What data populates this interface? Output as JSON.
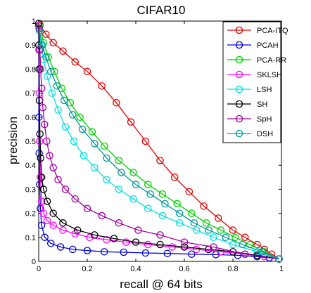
{
  "chart_data": {
    "type": "line",
    "title": "CIFAR10",
    "xlabel": "recall @ 64 bits",
    "ylabel": "precision",
    "xlim": [
      0,
      1
    ],
    "ylim": [
      0,
      1
    ],
    "xticks": [
      0,
      0.2,
      0.4,
      0.6,
      0.8,
      1
    ],
    "xtick_labels": [
      "0",
      "0.2",
      "0.4",
      "0.6",
      "0.8",
      "1"
    ],
    "yticks": [
      0,
      0.1,
      0.2,
      0.3,
      0.4,
      0.5,
      0.6,
      0.7,
      0.8,
      0.9,
      1
    ],
    "ytick_labels": [
      "0",
      "0.1",
      "0.2",
      "0.3",
      "0.4",
      "0.5",
      "0.6",
      "0.7",
      "0.8",
      "0.9",
      "1"
    ],
    "grid": false,
    "legend_position": "top-right",
    "marker": "circle",
    "series": [
      {
        "name": "PCA-ITQ",
        "color": "#e00000",
        "x": [
          0.005,
          0.03,
          0.06,
          0.1,
          0.15,
          0.2,
          0.26,
          0.32,
          0.38,
          0.44,
          0.5,
          0.56,
          0.62,
          0.68,
          0.74,
          0.8,
          0.85,
          0.9,
          0.93,
          0.96,
          0.99
        ],
        "y": [
          0.985,
          0.945,
          0.91,
          0.875,
          0.83,
          0.79,
          0.73,
          0.66,
          0.58,
          0.5,
          0.42,
          0.35,
          0.29,
          0.23,
          0.18,
          0.13,
          0.1,
          0.07,
          0.05,
          0.03,
          0.01
        ]
      },
      {
        "name": "PCAH",
        "color": "#0000dd",
        "x": [
          0.0,
          0.001,
          0.002,
          0.004,
          0.007,
          0.012,
          0.025,
          0.05,
          0.09,
          0.14,
          0.2,
          0.27,
          0.35,
          0.44,
          0.53,
          0.63,
          0.73,
          0.82,
          0.9,
          0.95,
          0.99
        ],
        "y": [
          0.98,
          0.6,
          0.45,
          0.32,
          0.22,
          0.15,
          0.1,
          0.075,
          0.06,
          0.05,
          0.045,
          0.04,
          0.038,
          0.035,
          0.033,
          0.03,
          0.028,
          0.025,
          0.02,
          0.015,
          0.01
        ]
      },
      {
        "name": "PCA-RR",
        "color": "#00d000",
        "x": [
          0.005,
          0.02,
          0.04,
          0.065,
          0.095,
          0.13,
          0.17,
          0.22,
          0.27,
          0.33,
          0.39,
          0.45,
          0.51,
          0.57,
          0.63,
          0.69,
          0.75,
          0.81,
          0.87,
          0.93,
          0.99
        ],
        "y": [
          0.98,
          0.91,
          0.85,
          0.79,
          0.72,
          0.66,
          0.6,
          0.54,
          0.48,
          0.42,
          0.37,
          0.32,
          0.28,
          0.24,
          0.2,
          0.16,
          0.13,
          0.1,
          0.07,
          0.04,
          0.01
        ]
      },
      {
        "name": "SKLSH",
        "color": "#ff00ff",
        "x": [
          0.0,
          0.001,
          0.002,
          0.004,
          0.007,
          0.012,
          0.02,
          0.035,
          0.06,
          0.1,
          0.15,
          0.21,
          0.28,
          0.36,
          0.45,
          0.55,
          0.65,
          0.75,
          0.85,
          0.93,
          0.99
        ],
        "y": [
          0.98,
          0.88,
          0.7,
          0.5,
          0.35,
          0.25,
          0.2,
          0.17,
          0.15,
          0.13,
          0.115,
          0.1,
          0.09,
          0.08,
          0.07,
          0.06,
          0.05,
          0.04,
          0.03,
          0.02,
          0.01
        ]
      },
      {
        "name": "LSH",
        "color": "#00e0e0",
        "x": [
          0.002,
          0.01,
          0.02,
          0.035,
          0.055,
          0.08,
          0.11,
          0.145,
          0.185,
          0.23,
          0.28,
          0.33,
          0.39,
          0.45,
          0.51,
          0.58,
          0.65,
          0.72,
          0.8,
          0.9,
          0.99
        ],
        "y": [
          0.97,
          0.9,
          0.84,
          0.77,
          0.7,
          0.63,
          0.56,
          0.5,
          0.44,
          0.39,
          0.34,
          0.3,
          0.26,
          0.22,
          0.19,
          0.16,
          0.13,
          0.1,
          0.07,
          0.04,
          0.01
        ]
      },
      {
        "name": "SH",
        "color": "#000000",
        "x": [
          0.0,
          0.001,
          0.002,
          0.003,
          0.005,
          0.008,
          0.012,
          0.02,
          0.035,
          0.06,
          0.1,
          0.16,
          0.23,
          0.31,
          0.4,
          0.5,
          0.6,
          0.7,
          0.8,
          0.9,
          0.99
        ],
        "y": [
          0.99,
          0.9,
          0.8,
          0.67,
          0.53,
          0.43,
          0.35,
          0.3,
          0.25,
          0.2,
          0.16,
          0.13,
          0.11,
          0.095,
          0.08,
          0.07,
          0.06,
          0.05,
          0.04,
          0.025,
          0.01
        ]
      },
      {
        "name": "SpH",
        "color": "#a000a0",
        "x": [
          0.002,
          0.005,
          0.008,
          0.012,
          0.017,
          0.024,
          0.033,
          0.045,
          0.06,
          0.08,
          0.11,
          0.15,
          0.2,
          0.26,
          0.33,
          0.41,
          0.5,
          0.6,
          0.72,
          0.85,
          0.99
        ],
        "y": [
          0.97,
          0.88,
          0.8,
          0.72,
          0.64,
          0.57,
          0.5,
          0.44,
          0.39,
          0.34,
          0.3,
          0.26,
          0.22,
          0.19,
          0.16,
          0.13,
          0.11,
          0.08,
          0.06,
          0.03,
          0.01
        ]
      },
      {
        "name": "DSH",
        "color": "#009999",
        "x": [
          0.003,
          0.015,
          0.03,
          0.05,
          0.075,
          0.105,
          0.14,
          0.18,
          0.23,
          0.28,
          0.34,
          0.4,
          0.46,
          0.52,
          0.58,
          0.64,
          0.7,
          0.77,
          0.84,
          0.92,
          0.99
        ],
        "y": [
          0.96,
          0.9,
          0.85,
          0.79,
          0.73,
          0.67,
          0.61,
          0.55,
          0.49,
          0.43,
          0.37,
          0.32,
          0.28,
          0.24,
          0.2,
          0.16,
          0.13,
          0.1,
          0.07,
          0.04,
          0.01
        ]
      }
    ]
  }
}
